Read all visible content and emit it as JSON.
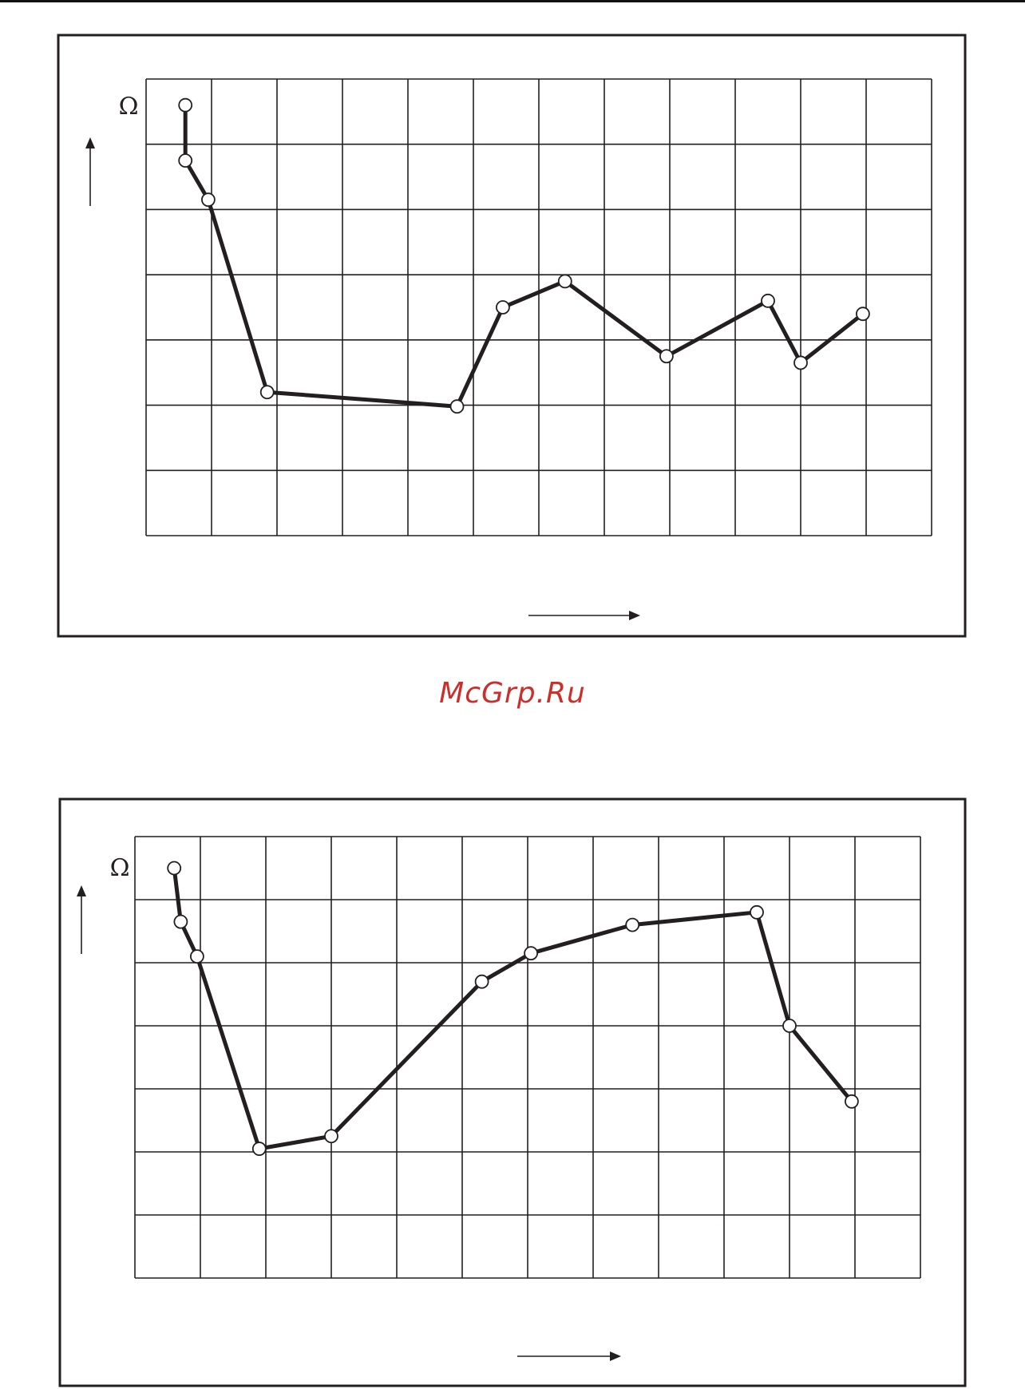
{
  "watermark": "McGrp.Ru",
  "colors": {
    "line": "#231f20",
    "grid": "#231f20",
    "marker_fill": "#ffffff",
    "watermark": "#c9302c"
  },
  "chart_data": [
    {
      "type": "line",
      "title": "",
      "xlabel": "",
      "ylabel": "Ω",
      "axis_arrows": [
        "up",
        "right"
      ],
      "grid": true,
      "grid_columns": 12,
      "grid_rows": 7,
      "xlim": [
        0,
        12
      ],
      "ylim": [
        0,
        7
      ],
      "legend": "none",
      "series": [
        {
          "x": [
            0.6,
            0.6,
            0.95,
            1.85,
            4.75,
            5.45,
            6.4,
            7.95,
            9.5,
            10.0,
            10.95
          ],
          "y": [
            6.6,
            5.75,
            5.15,
            2.2,
            1.98,
            3.5,
            3.9,
            2.75,
            3.6,
            2.65,
            3.4
          ]
        }
      ]
    },
    {
      "type": "line",
      "title": "",
      "xlabel": "",
      "ylabel": "Ω",
      "axis_arrows": [
        "up",
        "right"
      ],
      "grid": true,
      "grid_columns": 12,
      "grid_rows": 7,
      "xlim": [
        0,
        12
      ],
      "ylim": [
        0,
        7
      ],
      "legend": "none",
      "series": [
        {
          "x": [
            0.6,
            0.7,
            0.95,
            1.9,
            3.0,
            5.3,
            6.05,
            7.6,
            9.5,
            10.0,
            10.95
          ],
          "y": [
            6.5,
            5.65,
            5.1,
            2.05,
            2.25,
            4.7,
            5.15,
            5.6,
            5.8,
            4.0,
            2.8
          ]
        }
      ]
    }
  ]
}
